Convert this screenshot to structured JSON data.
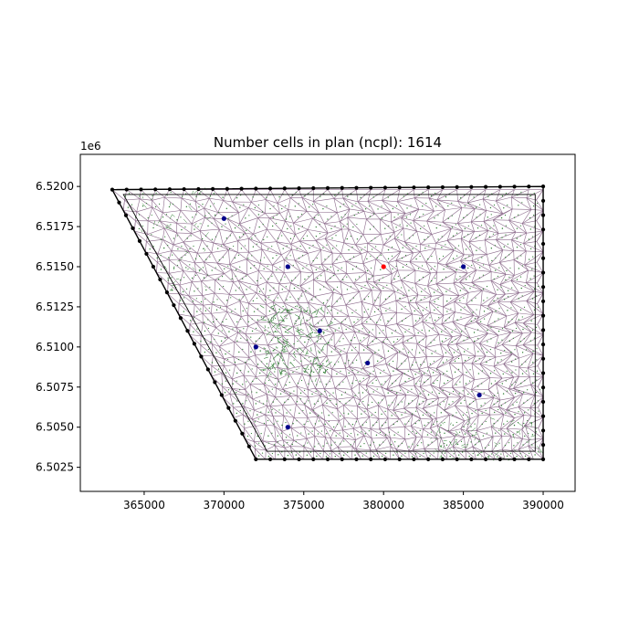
{
  "chart_data": {
    "type": "scatter",
    "title": "Number cells in plan (ncpl): 1614",
    "offset_text": "1e6",
    "xlim": [
      361000,
      392000
    ],
    "ylim": [
      6501000,
      6522000
    ],
    "xticks": [
      365000,
      370000,
      375000,
      380000,
      385000,
      390000
    ],
    "xtick_labels": [
      "365000",
      "370000",
      "375000",
      "380000",
      "385000",
      "390000"
    ],
    "yticks": [
      6502500,
      6505000,
      6507500,
      6510000,
      6512500,
      6515000,
      6517500,
      6520000
    ],
    "ytick_labels": [
      "6.5025",
      "6.5050",
      "6.5075",
      "6.5100",
      "6.5125",
      "6.5150",
      "6.5175",
      "6.5200"
    ],
    "domain_polygon": [
      [
        363000,
        6519800
      ],
      [
        390000,
        6520000
      ],
      [
        390000,
        6503000
      ],
      [
        372000,
        6503000
      ]
    ],
    "refine_zone": [
      [
        372500,
        6512500
      ],
      [
        376500,
        6508000
      ]
    ],
    "series": [
      {
        "color": "#00008b",
        "points": [
          [
            370000,
            6518000
          ],
          [
            374000,
            6515000
          ],
          [
            385000,
            6515000
          ],
          [
            376000,
            6511000
          ],
          [
            372000,
            6510000
          ],
          [
            379000,
            6509000
          ],
          [
            386000,
            6507000
          ],
          [
            374000,
            6505000
          ]
        ]
      },
      {
        "color": "#ff0000",
        "points": [
          [
            380000,
            6515000
          ]
        ]
      }
    ],
    "colors": {
      "boundary": "#000000",
      "mesh_edges": "#8b6a8b",
      "centroids": "#2e7d32",
      "frame": "#000000"
    },
    "grid": false
  }
}
